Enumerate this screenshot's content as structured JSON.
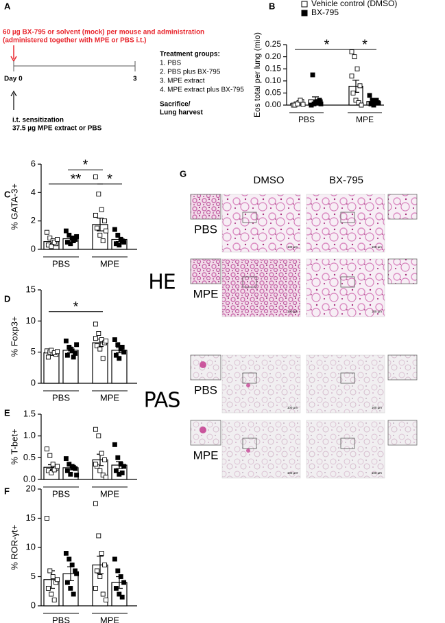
{
  "timeline": {
    "panel": "A",
    "note": [
      "60 µg BX-795 or solvent (mock) per mouse and administration",
      "(administered together with MPE or PBS i.t.)"
    ],
    "day_start": "Day 0",
    "day_end": "3",
    "groups_title": "Treatment groups:",
    "groups": [
      "1. PBS",
      "2. PBS plus BX-795",
      "3. MPE extract",
      "4. MPE extract plus BX-795"
    ],
    "end_event": [
      "Sacrifice/",
      "Lung harvest"
    ],
    "start_event": [
      "i.t. sensitization",
      "37.5 µg MPE extract or PBS"
    ]
  },
  "chart_data": [
    {
      "type": "bar",
      "panel": "B",
      "ylabel": "Eos total per lung (mio)",
      "categories": [
        "PBS",
        "MPE"
      ],
      "bar_color": "#ffffff",
      "ylim": [
        0,
        0.25
      ],
      "yticks": [
        {
          "value": 0,
          "label": "0.00"
        },
        0.05,
        {
          "value": 0.1,
          "label": "0.10"
        },
        0.15,
        {
          "value": 0.2,
          "label": "0.20"
        },
        0.25
      ],
      "series": [
        {
          "name": "Vehicle control (DMSO)",
          "color": "#ffffff",
          "values": [
            0.007,
            0.078
          ],
          "errors": [
            0.003,
            0.025
          ],
          "points": [
            [
              0,
              0.005,
              0.01,
              0.015,
              0,
              0.005,
              0.02,
              0.003
            ],
            [
              0.22,
              0.2,
              0.15,
              0.08,
              0.05,
              0.02,
              0.01,
              0,
              0.12
            ]
          ]
        },
        {
          "name": "BX-795",
          "color": "#000000",
          "values": [
            0.022,
            0.015
          ],
          "errors": [
            0.012,
            0.004
          ],
          "points": [
            [
              0,
              0.005,
              0.01,
              0.02,
              0.125,
              0.01,
              0.015,
              0.005,
              0
            ],
            [
              0.04,
              0.02,
              0.015,
              0.01,
              0.005,
              0,
              0.02
            ]
          ]
        }
      ],
      "annotations": [
        {
          "text": "*",
          "y": 0.23,
          "from": [
            0,
            0
          ],
          "to": [
            1,
            0
          ]
        },
        {
          "text": "*",
          "y": 0.23,
          "from": [
            1,
            0
          ],
          "to": [
            1,
            1
          ]
        }
      ]
    },
    {
      "type": "bar",
      "panel": "C",
      "ylabel": "% GATA-3+",
      "categories": [
        "PBS",
        "MPE"
      ],
      "bar_color": "#ffffff",
      "ylim": [
        0,
        6
      ],
      "yticks": [
        0,
        2,
        4,
        6
      ],
      "series": [
        {
          "color": "#ffffff",
          "values": [
            0.55,
            1.75
          ],
          "errors": [
            0.12,
            0.45
          ],
          "points": [
            [
              1.2,
              0.8,
              0.6,
              0.4,
              0.3,
              0.2,
              0.5,
              0.7
            ],
            [
              5.1,
              3.9,
              2.8,
              2,
              1.5,
              1,
              0.6,
              1.3,
              2.4
            ]
          ]
        },
        {
          "color": "#000000",
          "values": [
            0.75,
            0.7
          ],
          "errors": [
            0.12,
            0.15
          ],
          "points": [
            [
              1.3,
              1,
              0.8,
              0.7,
              0.5,
              0.4,
              0.6,
              0.9
            ],
            [
              1.4,
              1,
              0.7,
              0.5,
              0.4,
              0.3,
              0.6
            ]
          ]
        }
      ],
      "annotations": [
        {
          "text": "**",
          "y": 4.6,
          "from": [
            0,
            0
          ],
          "to": [
            1,
            0
          ]
        },
        {
          "text": "*",
          "y": 5.6,
          "from": [
            0,
            1
          ],
          "to": [
            1,
            0
          ]
        },
        {
          "text": "*",
          "y": 4.6,
          "from": [
            1,
            0
          ],
          "to": [
            1,
            1
          ]
        }
      ]
    },
    {
      "type": "bar",
      "panel": "D",
      "ylabel": "% Foxp3+",
      "categories": [
        "PBS",
        "MPE"
      ],
      "bar_color": "#ffffff",
      "ylim": [
        0,
        15
      ],
      "yticks": [
        0,
        5,
        10,
        15
      ],
      "series": [
        {
          "color": "#ffffff",
          "values": [
            4.9,
            6.5
          ],
          "errors": [
            0.2,
            0.6
          ],
          "points": [
            [
              5.2,
              5,
              4.8,
              4.6,
              4.2,
              5.3,
              4.9,
              5.1
            ],
            [
              9.5,
              8,
              7,
              6.5,
              6,
              5.5,
              4,
              6.8,
              7.2
            ]
          ]
        },
        {
          "color": "#000000",
          "values": [
            5.3,
            5.3
          ],
          "errors": [
            0.4,
            0.4
          ],
          "points": [
            [
              6.8,
              5.8,
              5.2,
              4.8,
              4.5,
              5.5,
              4.2,
              6.2
            ],
            [
              7,
              6.2,
              5.5,
              5,
              4.5,
              4,
              5.8
            ]
          ]
        }
      ],
      "annotations": [
        {
          "text": "*",
          "y": 11.5,
          "from": [
            0,
            0
          ],
          "to": [
            1,
            0
          ]
        }
      ]
    },
    {
      "type": "bar",
      "panel": "E",
      "ylabel": "% T-bet+",
      "categories": [
        "PBS",
        "MPE"
      ],
      "bar_color": "#ffffff",
      "ylim": [
        0,
        1.5
      ],
      "yticks": [
        {
          "value": 0,
          "label": "0.0"
        },
        0.5,
        {
          "value": 1,
          "label": "1.0"
        },
        1.5
      ],
      "series": [
        {
          "color": "#ffffff",
          "values": [
            0.28,
            0.45
          ],
          "errors": [
            0.06,
            0.13
          ],
          "points": [
            [
              0.7,
              0.55,
              0.35,
              0.25,
              0.2,
              0.15,
              0.22,
              0.3
            ],
            [
              1.15,
              1,
              0.6,
              0.45,
              0.3,
              0.2,
              0.1,
              0.05,
              0.35
            ]
          ]
        },
        {
          "color": "#000000",
          "values": [
            0.27,
            0.33
          ],
          "errors": [
            0.05,
            0.08
          ],
          "points": [
            [
              0.48,
              0.35,
              0.3,
              0.25,
              0.2,
              0.12,
              0.28,
              0.1
            ],
            [
              0.8,
              0.5,
              0.35,
              0.3,
              0.2,
              0.12,
              0.15
            ]
          ]
        }
      ],
      "annotations": []
    },
    {
      "type": "bar",
      "panel": "F",
      "ylabel": "% ROR-γt+",
      "categories": [
        "PBS",
        "MPE"
      ],
      "bar_color": "#ffffff",
      "ylim": [
        0,
        20
      ],
      "yticks": [
        0,
        5,
        10,
        15,
        20
      ],
      "series": [
        {
          "color": "#ffffff",
          "values": [
            4.5,
            7
          ],
          "errors": [
            1.5,
            1.5
          ],
          "points": [
            [
              15,
              6,
              5,
              4,
              3,
              2,
              1,
              4.5
            ],
            [
              17.5,
              12,
              9,
              7,
              6,
              5,
              2,
              1,
              3
            ]
          ]
        },
        {
          "color": "#000000",
          "values": [
            5.5,
            4
          ],
          "errors": [
            1.2,
            1
          ],
          "points": [
            [
              9,
              8,
              7,
              6,
              4,
              3,
              2,
              5.5
            ],
            [
              8,
              6,
              5,
              4,
              3,
              2,
              1.5
            ]
          ]
        }
      ],
      "annotations": []
    }
  ],
  "histology": {
    "panel": "G",
    "columns": [
      "DMSO",
      "BX-795"
    ],
    "stains": [
      "HE",
      "PAS"
    ],
    "rows": [
      "PBS",
      "MPE",
      "PBS",
      "MPE"
    ],
    "scale_bar": "100 µm"
  }
}
